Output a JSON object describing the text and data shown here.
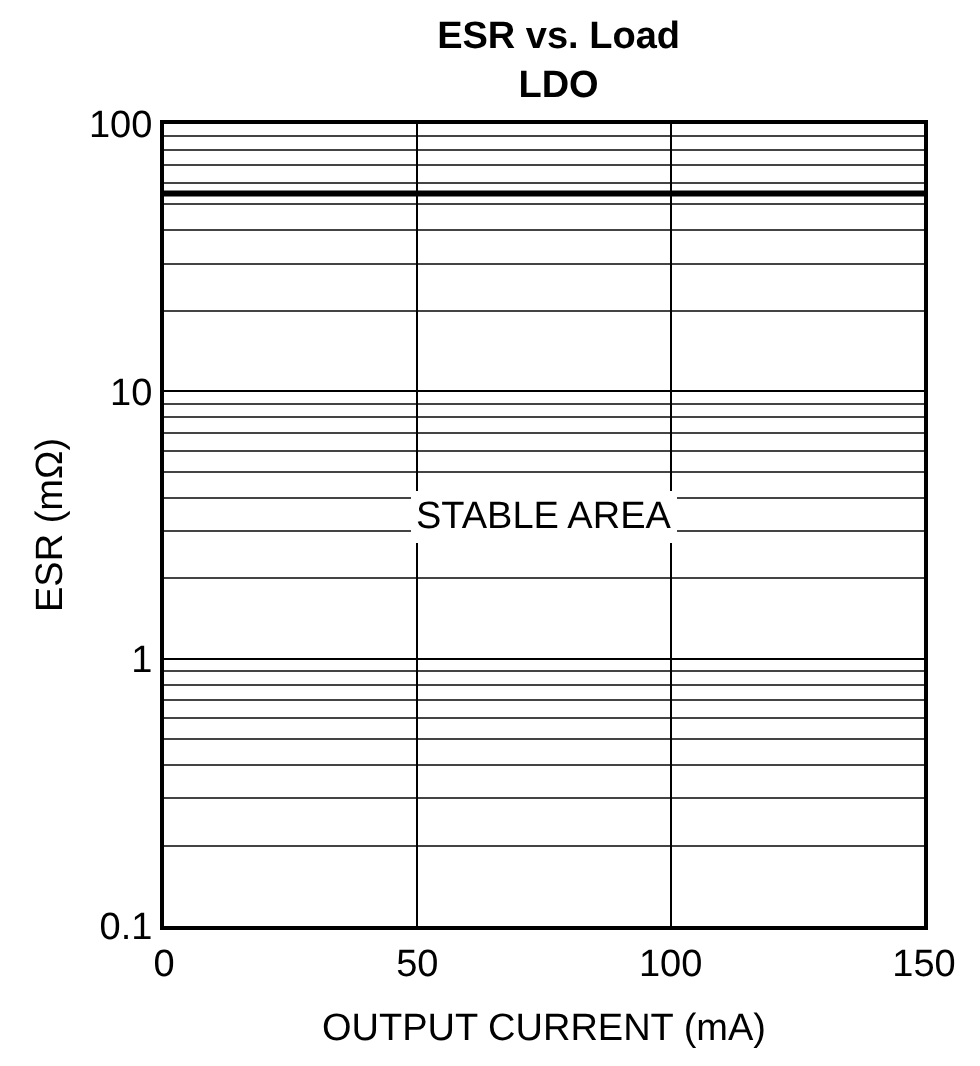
{
  "chart_data": {
    "type": "line",
    "title": "ESR vs. Load\nLDO",
    "xlabel": "OUTPUT CURRENT (mA)",
    "ylabel": "ESR (mΩ)",
    "xlim": [
      0,
      150
    ],
    "xticks": [
      0,
      50,
      100,
      150
    ],
    "ylim": [
      0.1,
      100
    ],
    "yticks": [
      0.1,
      1,
      10,
      100
    ],
    "log": "y",
    "grid": true,
    "ref_lines": [
      {
        "axis": "y",
        "value": 55,
        "color": "#000000"
      }
    ],
    "annotations": [
      "STABLE AREA"
    ]
  }
}
